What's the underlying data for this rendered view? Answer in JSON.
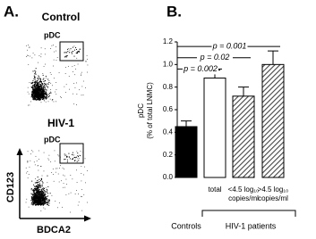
{
  "panel_a": {
    "label": "A.",
    "plots": [
      {
        "title": "Control",
        "gate": "pDC"
      },
      {
        "title": "HIV-1",
        "gate": "pDC"
      }
    ],
    "y_axis": "CD123",
    "x_axis": "BDCA2"
  },
  "chart_data": {
    "type": "bar",
    "panel_label": "B.",
    "y_label": [
      "pDC",
      "(% of total LNMC)"
    ],
    "categories": [
      null,
      "total",
      "<4.5 log₁₀ copies/ml",
      ">4.5 log₁₀ copies/ml"
    ],
    "values": [
      0.45,
      0.88,
      0.72,
      1.0
    ],
    "errors": [
      0.05,
      0.07,
      0.08,
      0.12
    ],
    "fills": [
      "#000000",
      "#ffffff",
      "hatch",
      "hatch"
    ],
    "ylim": [
      0,
      1.2
    ],
    "yticks": [
      {
        "value": 0,
        "label": "0.0"
      },
      0.2,
      0.4,
      0.6,
      0.8,
      {
        "value": 1,
        "label": "1.0"
      },
      1.2
    ],
    "annotations": [
      "p = 0.002",
      "p = 0.02",
      "p = 0.001"
    ],
    "groups": [
      "Controls",
      "HIV-1 patients"
    ]
  }
}
